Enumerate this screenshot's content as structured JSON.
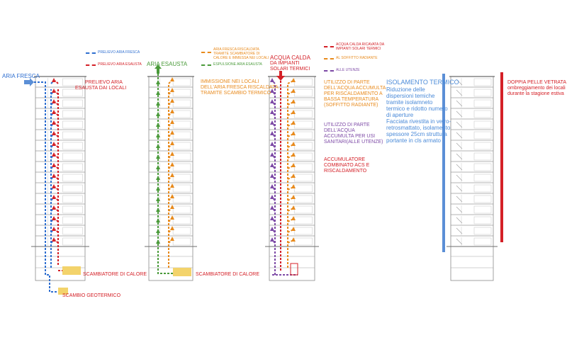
{
  "colors": {
    "blue": "#2f6fd0",
    "red": "#d42027",
    "green": "#4a9a3a",
    "orange": "#e88a1c",
    "purple": "#7d4aa6",
    "yellow": "#f3d36b",
    "light_blue": "#5b8fd6"
  },
  "panel1": {
    "legend_fresh": "PRELIEVO ARIA FRESCA",
    "legend_exhaust": "PRELIEVO ARIA ESAUSTA",
    "label_aria_fresca": "ARIA FRESCA",
    "label_prelievo_1": "PRELIEVO ARIA",
    "label_prelievo_2": "ESAUSTA DAI LOCALI",
    "label_scambiatore": "SCAMBIATORE DI CALORE",
    "label_geotermico": "SCAMBIO GEOTERMICO"
  },
  "panel2": {
    "legend_heated_1": "ARIA FRESCA RISCALDATA",
    "legend_heated_2": "TRAMITE SCAMBIATORE DI",
    "legend_heated_3": "CALORE E IMMESSA NEI LOCALI",
    "legend_expulsion": "ESPULSIONE ARIA ESAUSTA",
    "label_aria_esausta": "ARIA ESAUSTA",
    "label_immissione_1": "IMMISSIONE NEI LOCALI",
    "label_immissione_2": "DELL'ARIA FRESCA RISCALDATA",
    "label_immissione_3": "TRAMITE SCAMBIO TERMICO",
    "label_scambiatore": "SCAMBIATORE DI CALORE"
  },
  "panel3": {
    "legend_solar_1": "ACQUA CALDA RICAVATA DA",
    "legend_solar_2": "IMPIANTI SOLARI TERMICI",
    "legend_radiant": "AL SOFFITTO RADIANTE",
    "legend_users": "ALLE UTENZE",
    "label_acqua_1": "ACQUA CALDA",
    "label_acqua_2": "DA IMPIANTI",
    "label_acqua_3": "SOLARI TERMICI",
    "note_a": [
      "UTILIZZO DI PARTE",
      "DELL'ACQUA ACCUMULTA",
      "PER RISCALDAMENTO  A",
      "BASSA TEMPERATURA",
      "(SOFFITTO RADIANTE)"
    ],
    "note_b": [
      "UTILIZZO DI PARTE",
      "DELL'ACQUA",
      "ACCUMULTA PER USI",
      "SANITARI(ALLE UTENZE)"
    ],
    "note_c": [
      "ACCUMULATORE",
      "COMBINATO ACS E",
      "RISCALDAMENTO"
    ]
  },
  "panel4": {
    "iso_title": "ISOLAMENTO TERMICO",
    "iso_lines": [
      "Riduzione delle",
      "dispersioni temiche",
      "tramite isolamneto",
      "termico e ridotto numero",
      "di aperture",
      "Facciata rivestita in vetro-",
      "retrosmattato, isolamento",
      "spessore 25cm struttura",
      "portante in cls armato"
    ],
    "pelle_title": "DOPPIA PELLE VETRATA -",
    "pelle_lines": [
      "ombreggiamento dei locali",
      "durante la stagione estiva"
    ]
  }
}
